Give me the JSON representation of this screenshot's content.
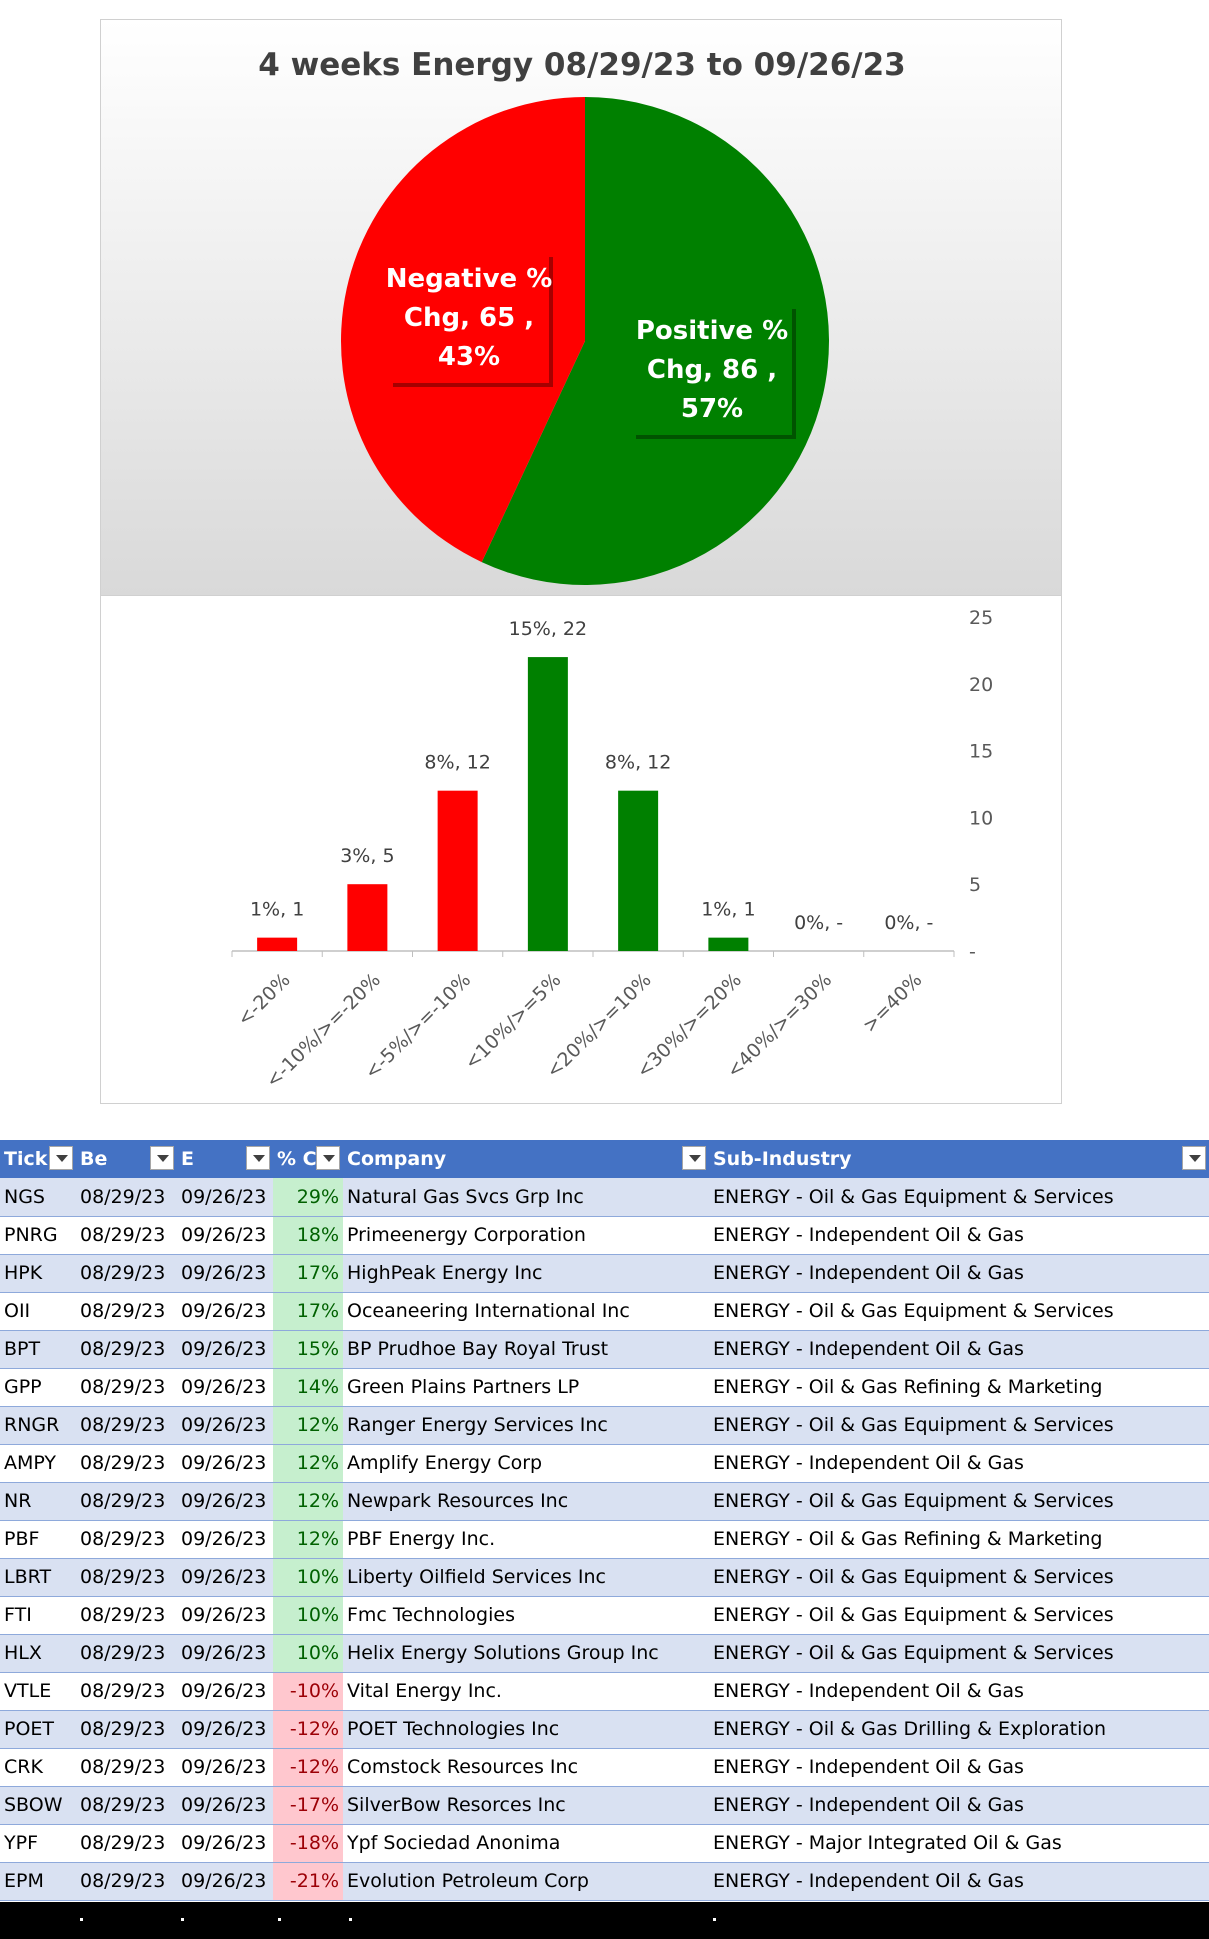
{
  "chart_data": [
    {
      "type": "pie",
      "title": "4 weeks Energy 08/29/23 to 09/26/23",
      "slices": [
        {
          "label": "Positive % Chg",
          "count": 86,
          "percent": "57%",
          "color": "#008000"
        },
        {
          "label": "Negative % Chg",
          "count": 65,
          "percent": "43%",
          "color": "#ff0000"
        }
      ],
      "labels": {
        "positive": [
          "Positive %",
          "Chg,  86 ,",
          "57%"
        ],
        "negative": [
          "Negative %",
          "Chg,  65 ,",
          "43%"
        ]
      }
    },
    {
      "type": "bar",
      "categories": [
        "<-20%",
        "<-10%/>=-20%",
        "<-5%/>=-10%",
        "<10%/>=5%",
        "<20%/>=10%",
        "<30%/>=20%",
        "<40%/>=30%",
        ">=40%"
      ],
      "values": [
        1,
        5,
        12,
        22,
        12,
        1,
        0,
        0
      ],
      "data_labels": [
        "1%,  1",
        "3%,  5",
        "8%,  12",
        "15%,  22",
        "8%,  12",
        "1%,  1",
        "0%,  -",
        "0%,  -"
      ],
      "colors": [
        "#ff0000",
        "#ff0000",
        "#ff0000",
        "#008000",
        "#008000",
        "#008000",
        "#008000",
        "#008000"
      ],
      "ylim": [
        0,
        25
      ],
      "yticks": [
        0,
        5,
        10,
        15,
        20,
        25
      ],
      "ytick_labels": [
        "-",
        "5",
        "10",
        "15",
        "20",
        "25"
      ],
      "y_axis_side": "right"
    }
  ],
  "table": {
    "headers": [
      "Tick",
      "Be",
      "E",
      "% C",
      "Company",
      "Sub-Industry"
    ],
    "rows": [
      [
        "NGS",
        "08/29/23",
        "09/26/23",
        "29%",
        "Natural Gas Svcs Grp Inc",
        "ENERGY - Oil & Gas Equipment & Services"
      ],
      [
        "PNRG",
        "08/29/23",
        "09/26/23",
        "18%",
        "Primeenergy Corporation",
        "ENERGY - Independent Oil & Gas"
      ],
      [
        "HPK",
        "08/29/23",
        "09/26/23",
        "17%",
        "HighPeak Energy Inc",
        "ENERGY - Independent Oil & Gas"
      ],
      [
        "OII",
        "08/29/23",
        "09/26/23",
        "17%",
        "Oceaneering International Inc",
        "ENERGY - Oil & Gas Equipment & Services"
      ],
      [
        "BPT",
        "08/29/23",
        "09/26/23",
        "15%",
        "BP Prudhoe Bay Royal Trust",
        "ENERGY - Independent Oil & Gas"
      ],
      [
        "GPP",
        "08/29/23",
        "09/26/23",
        "14%",
        "Green Plains Partners LP",
        "ENERGY - Oil & Gas Refining & Marketing"
      ],
      [
        "RNGR",
        "08/29/23",
        "09/26/23",
        "12%",
        "Ranger Energy Services Inc",
        "ENERGY - Oil & Gas Equipment & Services"
      ],
      [
        "AMPY",
        "08/29/23",
        "09/26/23",
        "12%",
        "Amplify Energy Corp",
        "ENERGY - Independent Oil & Gas"
      ],
      [
        "NR",
        "08/29/23",
        "09/26/23",
        "12%",
        "Newpark Resources Inc",
        "ENERGY - Oil & Gas Equipment & Services"
      ],
      [
        "PBF",
        "08/29/23",
        "09/26/23",
        "12%",
        "PBF Energy Inc.",
        "ENERGY - Oil & Gas Refining & Marketing"
      ],
      [
        "LBRT",
        "08/29/23",
        "09/26/23",
        "10%",
        "Liberty Oilfield Services Inc",
        "ENERGY - Oil & Gas Equipment & Services"
      ],
      [
        "FTI",
        "08/29/23",
        "09/26/23",
        "10%",
        "Fmc Technologies",
        "ENERGY - Oil & Gas Equipment & Services"
      ],
      [
        "HLX",
        "08/29/23",
        "09/26/23",
        "10%",
        "Helix Energy Solutions Group Inc",
        "ENERGY - Oil & Gas Equipment & Services"
      ],
      [
        "VTLE",
        "08/29/23",
        "09/26/23",
        "-10%",
        "Vital Energy Inc.",
        "ENERGY - Independent Oil & Gas"
      ],
      [
        "POET",
        "08/29/23",
        "09/26/23",
        "-12%",
        "POET Technologies Inc",
        "ENERGY - Oil & Gas Drilling & Exploration"
      ],
      [
        "CRK",
        "08/29/23",
        "09/26/23",
        "-12%",
        "Comstock Resources Inc",
        "ENERGY - Independent Oil & Gas"
      ],
      [
        "SBOW",
        "08/29/23",
        "09/26/23",
        "-17%",
        "SilverBow Resorces Inc",
        "ENERGY - Independent Oil & Gas"
      ],
      [
        "YPF",
        "08/29/23",
        "09/26/23",
        "-18%",
        "Ypf Sociedad Anonima",
        "ENERGY - Major Integrated Oil & Gas"
      ],
      [
        "EPM",
        "08/29/23",
        "09/26/23",
        "-21%",
        "Evolution Petroleum Corp",
        "ENERGY - Independent Oil & Gas"
      ]
    ]
  },
  "footer": {
    "dots": [
      ".",
      ".",
      ".",
      ".",
      ".",
      "."
    ]
  }
}
